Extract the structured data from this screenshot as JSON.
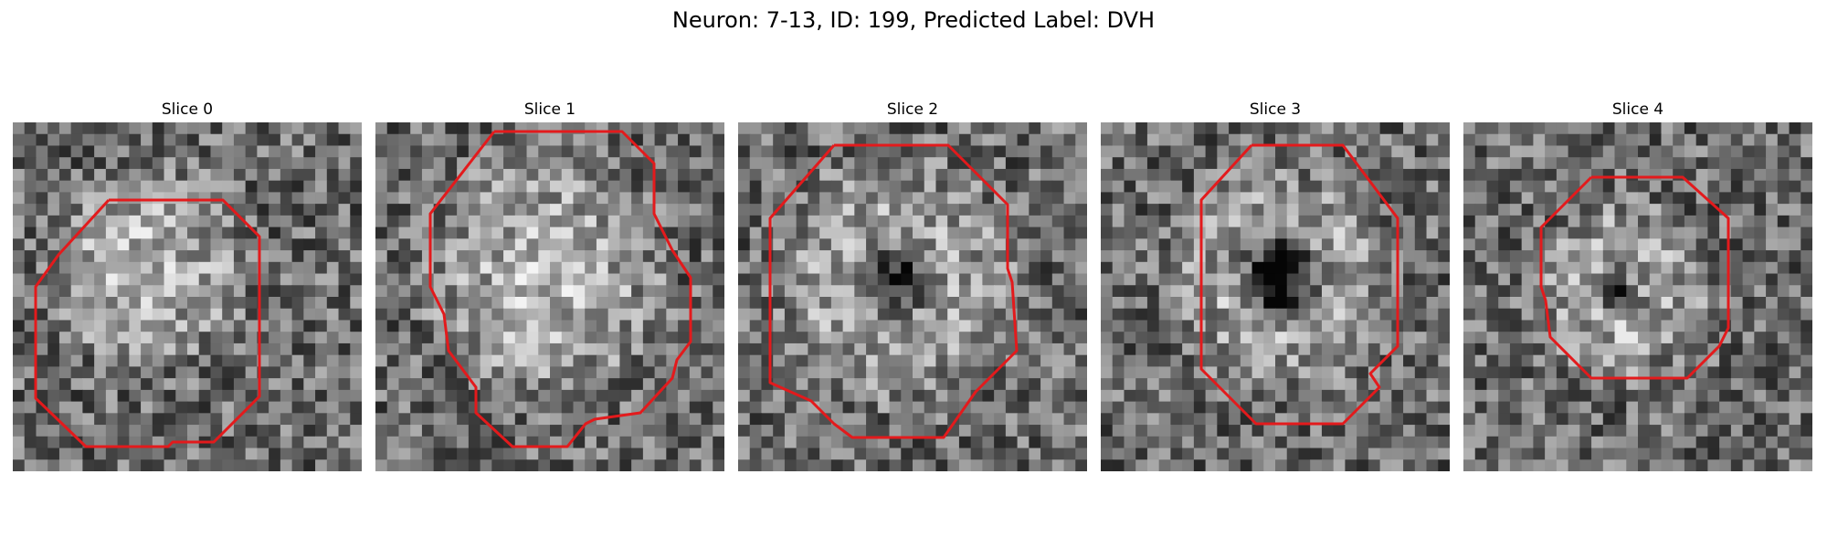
{
  "figure": {
    "title": "Neuron: 7-13, ID: 199, Predicted Label: DVH",
    "panels": [
      {
        "title": "Slice 0",
        "content": "grayscale-noise-with-bright-blob",
        "roi_color": "#e31a1c"
      },
      {
        "title": "Slice 1",
        "content": "grayscale-noise-with-bright-round-cell",
        "roi_color": "#e31a1c"
      },
      {
        "title": "Slice 2",
        "content": "grayscale-ring-with-dark-center",
        "roi_color": "#e31a1c"
      },
      {
        "title": "Slice 3",
        "content": "grayscale-ring-with-dark-center",
        "roi_color": "#e31a1c"
      },
      {
        "title": "Slice 4",
        "content": "grayscale-faint-ring",
        "roi_color": "#e31a1c"
      }
    ]
  }
}
